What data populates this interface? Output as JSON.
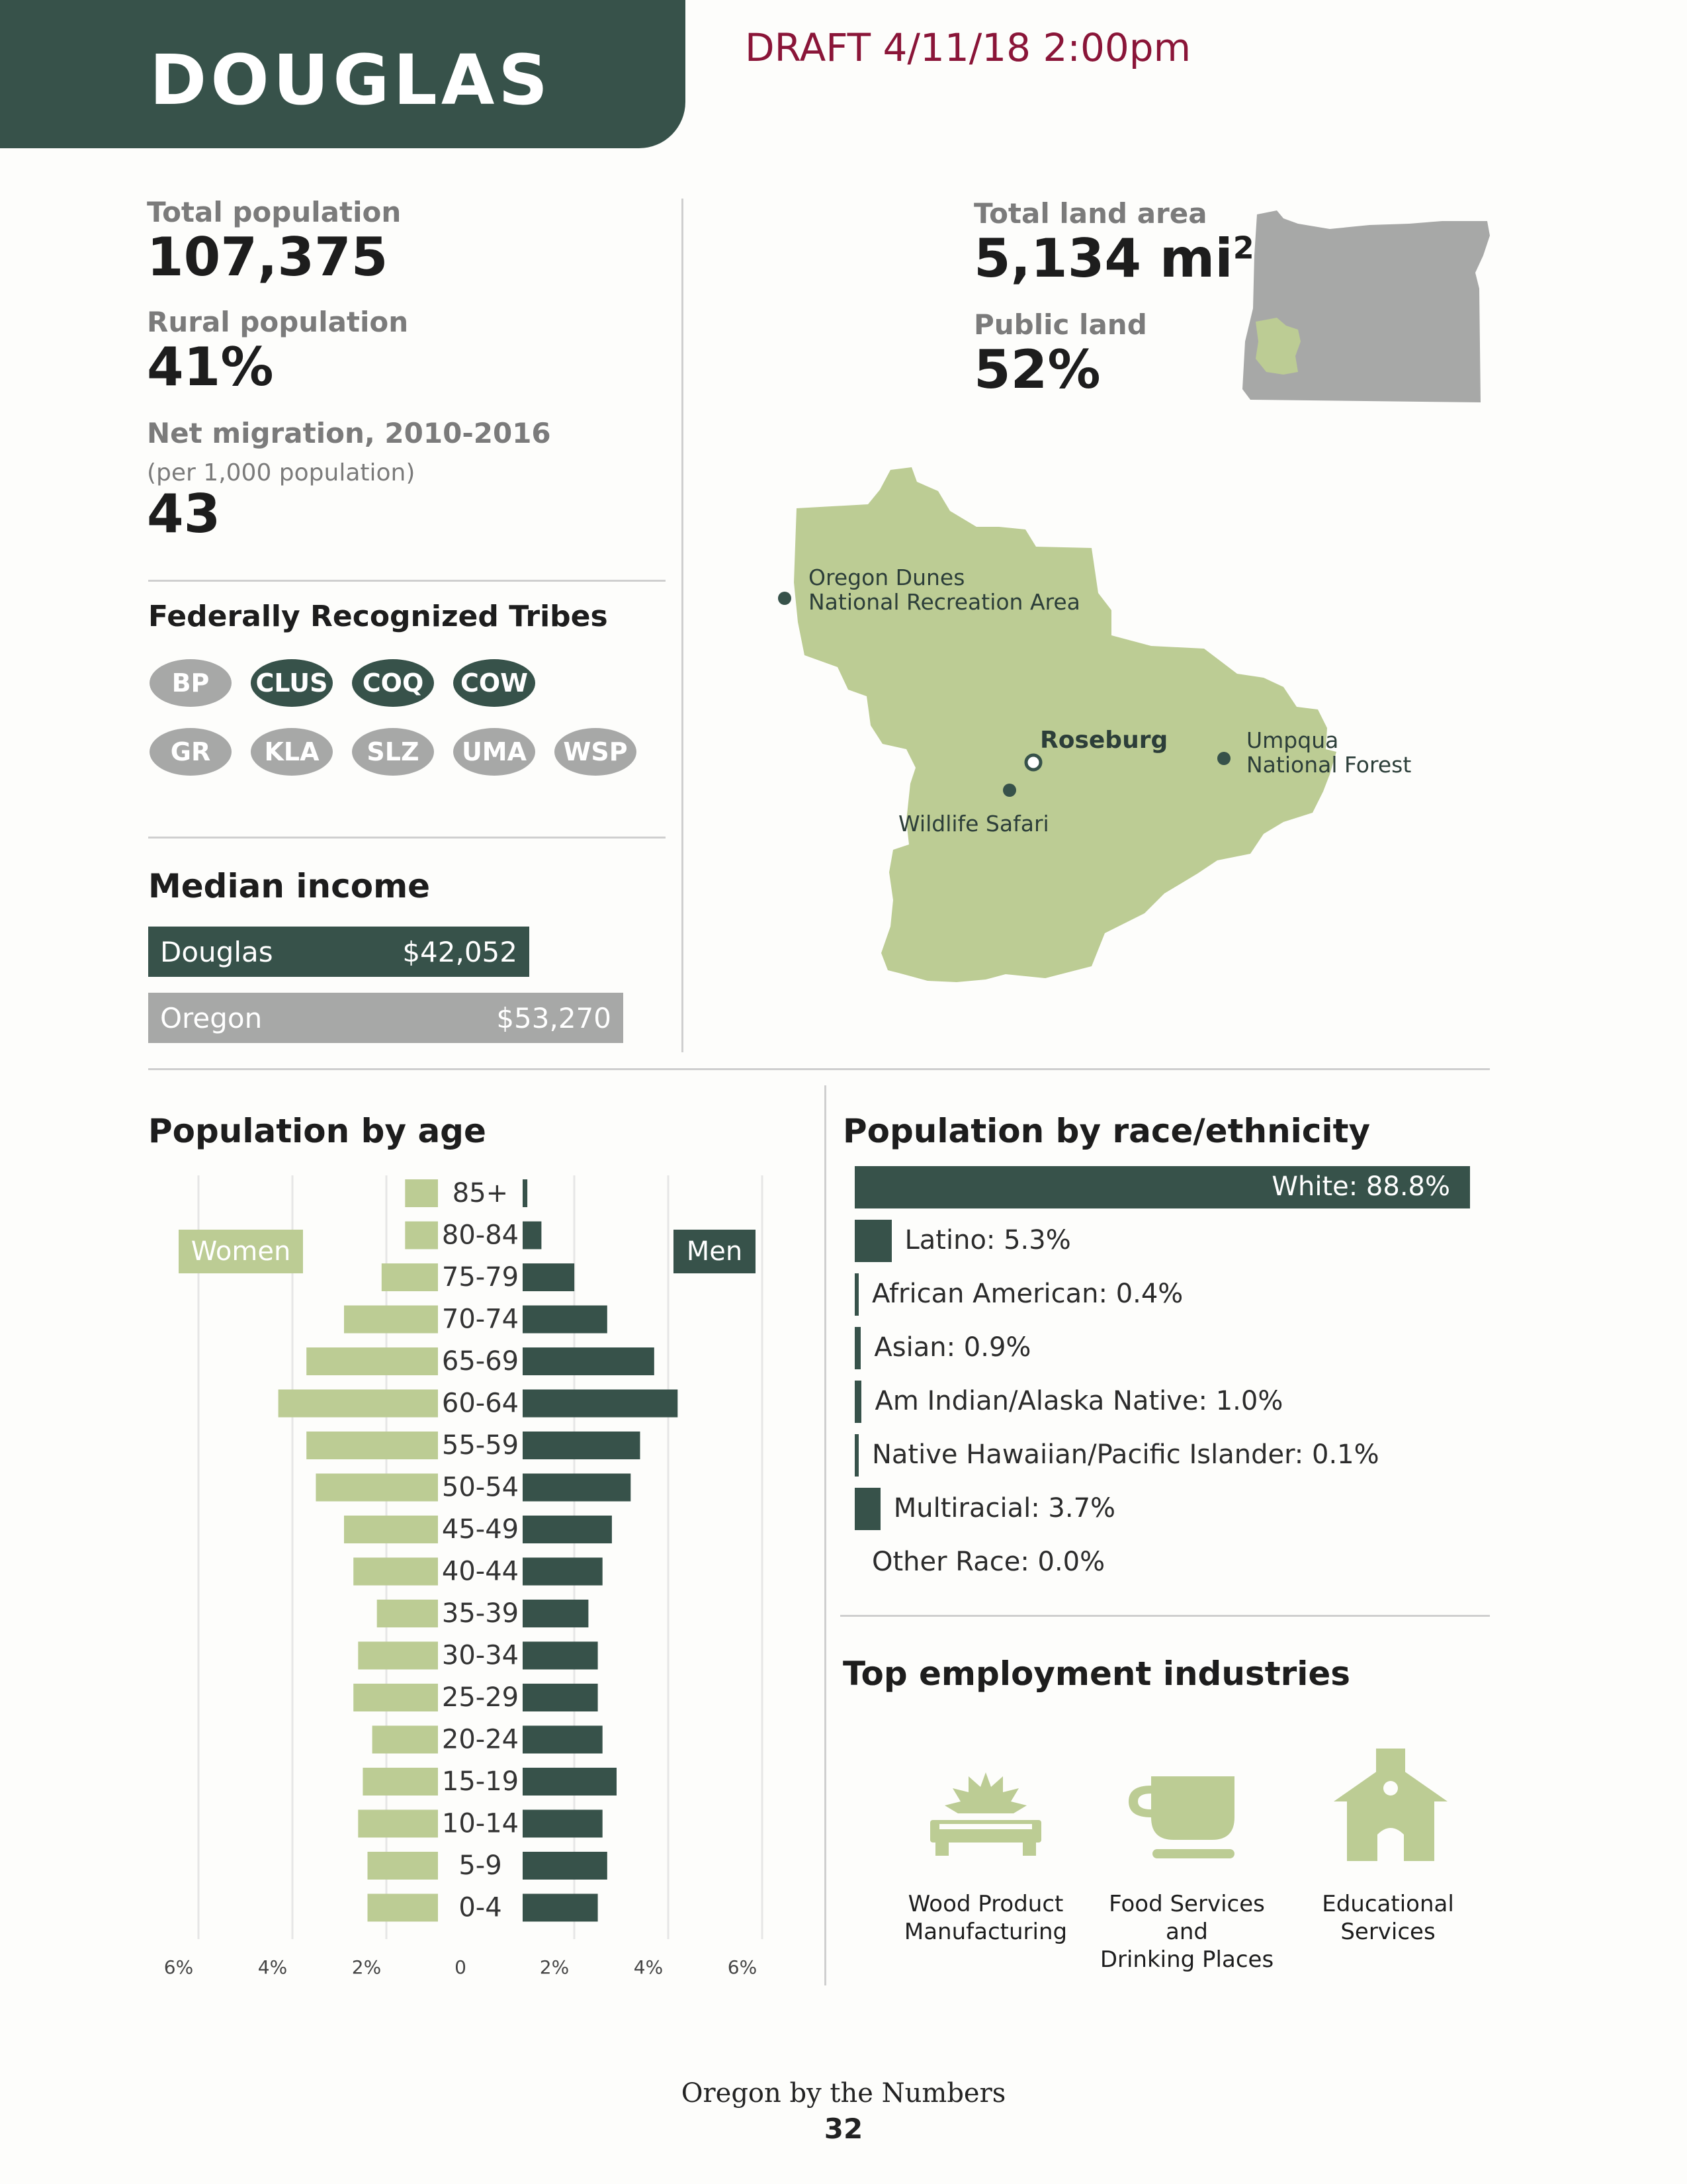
{
  "header": {
    "title": "DOUGLAS",
    "draft": "DRAFT 4/11/18 2:00pm"
  },
  "stats": {
    "total_population_label": "Total population",
    "total_population": "107,375",
    "rural_population_label": "Rural population",
    "rural_population": "41%",
    "net_migration_label": "Net migration, 2010-2016",
    "net_migration_sub": "(per 1,000 population)",
    "net_migration": "43",
    "land_area_label": "Total land area",
    "land_area": "5,134 mi",
    "land_area_unit_sup": "2",
    "public_land_label": "Public land",
    "public_land": "52%"
  },
  "tribes": {
    "title": "Federally Recognized Tribes",
    "items": [
      {
        "code": "BP",
        "highlight": false
      },
      {
        "code": "CLUS",
        "highlight": true
      },
      {
        "code": "COQ",
        "highlight": true
      },
      {
        "code": "COW",
        "highlight": true
      },
      {
        "code": "GR",
        "highlight": false
      },
      {
        "code": "KLA",
        "highlight": false
      },
      {
        "code": "SLZ",
        "highlight": false
      },
      {
        "code": "UMA",
        "highlight": false
      },
      {
        "code": "WSP",
        "highlight": false
      }
    ]
  },
  "income": {
    "title": "Median income",
    "rows": [
      {
        "name": "Douglas",
        "value": "$42,052",
        "amount": 42052,
        "color": "#37524a"
      },
      {
        "name": "Oregon",
        "value": "$53,270",
        "amount": 53270,
        "color": "#a7a8a7"
      }
    ]
  },
  "map": {
    "oregon_dunes": "Oregon Dunes",
    "oregon_dunes_2": "National Recreation Area",
    "roseburg": "Roseburg",
    "umpqua": "Umpqua",
    "umpqua_2": "National Forest",
    "wildlife_safari": "Wildlife Safari"
  },
  "age": {
    "title": "Population by age",
    "women_label": "Women",
    "men_label": "Men"
  },
  "race": {
    "title": "Population by race/ethnicity"
  },
  "employment": {
    "title": "Top employment industries",
    "items": [
      {
        "line1": "Wood Product",
        "line2": "Manufacturing",
        "icon": "saw-blade-icon"
      },
      {
        "line1": "Food Services and",
        "line2": "Drinking Places",
        "icon": "coffee-cup-icon"
      },
      {
        "line1": "Educational",
        "line2": "Services",
        "icon": "schoolhouse-icon"
      }
    ]
  },
  "footer": {
    "title": "Oregon by the Numbers",
    "page": "32"
  },
  "colors": {
    "dark_green": "#37524a",
    "light_green": "#bccc94",
    "gray": "#a7a8a7",
    "draft_red": "#8a1538"
  },
  "chart_data": [
    {
      "type": "bar",
      "orientation": "horizontal-pyramid",
      "title": "Population by age",
      "categories": [
        "85+",
        "80-84",
        "75-79",
        "70-74",
        "65-69",
        "60-64",
        "55-59",
        "50-54",
        "45-49",
        "40-44",
        "35-39",
        "30-34",
        "25-29",
        "20-24",
        "15-19",
        "10-14",
        "5-9",
        "0-4"
      ],
      "series": [
        {
          "name": "Women",
          "values": [
            0.7,
            0.7,
            1.2,
            2.0,
            2.8,
            3.4,
            2.8,
            2.6,
            2.0,
            1.8,
            1.3,
            1.7,
            1.8,
            1.4,
            1.6,
            1.7,
            1.5,
            1.5
          ]
        },
        {
          "name": "Men",
          "values": [
            0.1,
            0.4,
            1.1,
            1.8,
            2.8,
            3.3,
            2.5,
            2.3,
            1.9,
            1.7,
            1.4,
            1.6,
            1.6,
            1.7,
            2.0,
            1.7,
            1.8,
            1.6
          ]
        }
      ],
      "xticks": [
        "6%",
        "4%",
        "2%",
        "0",
        "2%",
        "4%",
        "6%"
      ],
      "xlim": [
        -6,
        6
      ],
      "grid": true
    },
    {
      "type": "bar",
      "orientation": "horizontal",
      "title": "Population by race/ethnicity",
      "categories": [
        "White",
        "Latino",
        "African American",
        "Asian",
        "Am Indian/Alaska Native",
        "Native Hawaiian/Pacific Islander",
        "Multiracial",
        "Other Race"
      ],
      "labels": [
        "White: 88.8%",
        "Latino: 5.3%",
        "African American: 0.4%",
        "Asian: 0.9%",
        "Am Indian/Alaska Native: 1.0%",
        "Native Hawaiian/Pacific Islander: 0.1%",
        "Multiracial: 3.7%",
        "Other Race: 0.0%"
      ],
      "values": [
        88.8,
        5.3,
        0.4,
        0.9,
        1.0,
        0.1,
        3.7,
        0.0
      ]
    }
  ]
}
